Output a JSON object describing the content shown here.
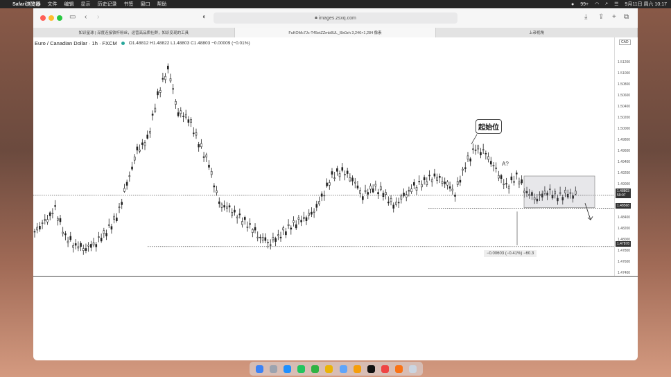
{
  "menubar": {
    "items": [
      "Safari浏览器",
      "文件",
      "编辑",
      "显示",
      "历史记录",
      "书签",
      "窗口",
      "帮助"
    ],
    "battery": "99+",
    "datetime": "9月11日 周六  10:17"
  },
  "browser": {
    "url": "images.zsxq.com",
    "tabs": [
      {
        "label": "知识星球 | 深度连接铁杆粉丝，运营高品质社群，知识变现的工具"
      },
      {
        "label": "FuKOMc7Jc-T45etZZmb8UL_l8x0zh 3,246×1,284 像素"
      },
      {
        "label": "上帝视角"
      }
    ]
  },
  "chart": {
    "symbol": "Euro / Canadian Dollar · 1h · FXCM",
    "ohlc": "O1.48812  H1.48822  L1.48803  C1.48803  −0.00009 (−0.01%)",
    "currency": "CAD",
    "callout": "起始位",
    "a_label": "A?",
    "measure": "−0.00603 (−0.41%)  −60.3",
    "current_price": "1.48803",
    "countdown": "59:07",
    "level_low": "1.47878",
    "level_mid": "1.48568",
    "ticks": [
      "1.51200",
      "1.51000",
      "1.50800",
      "1.50600",
      "1.50400",
      "1.50200",
      "1.50000",
      "1.49800",
      "1.49600",
      "1.49400",
      "1.49200",
      "1.49000",
      "1.48800",
      "1.48600",
      "1.48400",
      "1.48200",
      "1.48000",
      "1.47800",
      "1.47600",
      "1.47400"
    ]
  },
  "chart_data": {
    "type": "line",
    "title": "Euro / Canadian Dollar · 1h · FXCM",
    "ylim": [
      1.474,
      1.513
    ],
    "series": [
      {
        "values": [
          1.4815,
          1.4832,
          1.4855,
          1.4805,
          1.479,
          1.4785,
          1.4795,
          1.4815,
          1.484,
          1.49,
          1.496,
          1.498,
          1.506,
          1.511,
          1.503,
          1.502,
          1.4975,
          1.4935,
          1.4865,
          1.4855,
          1.484,
          1.4825,
          1.4805,
          1.4795,
          1.481,
          1.4825,
          1.4835,
          1.4845,
          1.4875,
          1.4915,
          1.4925,
          1.491,
          1.488,
          1.4895,
          1.4885,
          1.486,
          1.4878,
          1.4895,
          1.4905,
          1.4915,
          1.4905,
          1.4885,
          1.4935,
          1.4965,
          1.4955,
          1.4925,
          1.4895,
          1.4915,
          1.4885,
          1.4875,
          1.4888,
          1.4878,
          1.4882,
          1.488
        ]
      }
    ]
  }
}
